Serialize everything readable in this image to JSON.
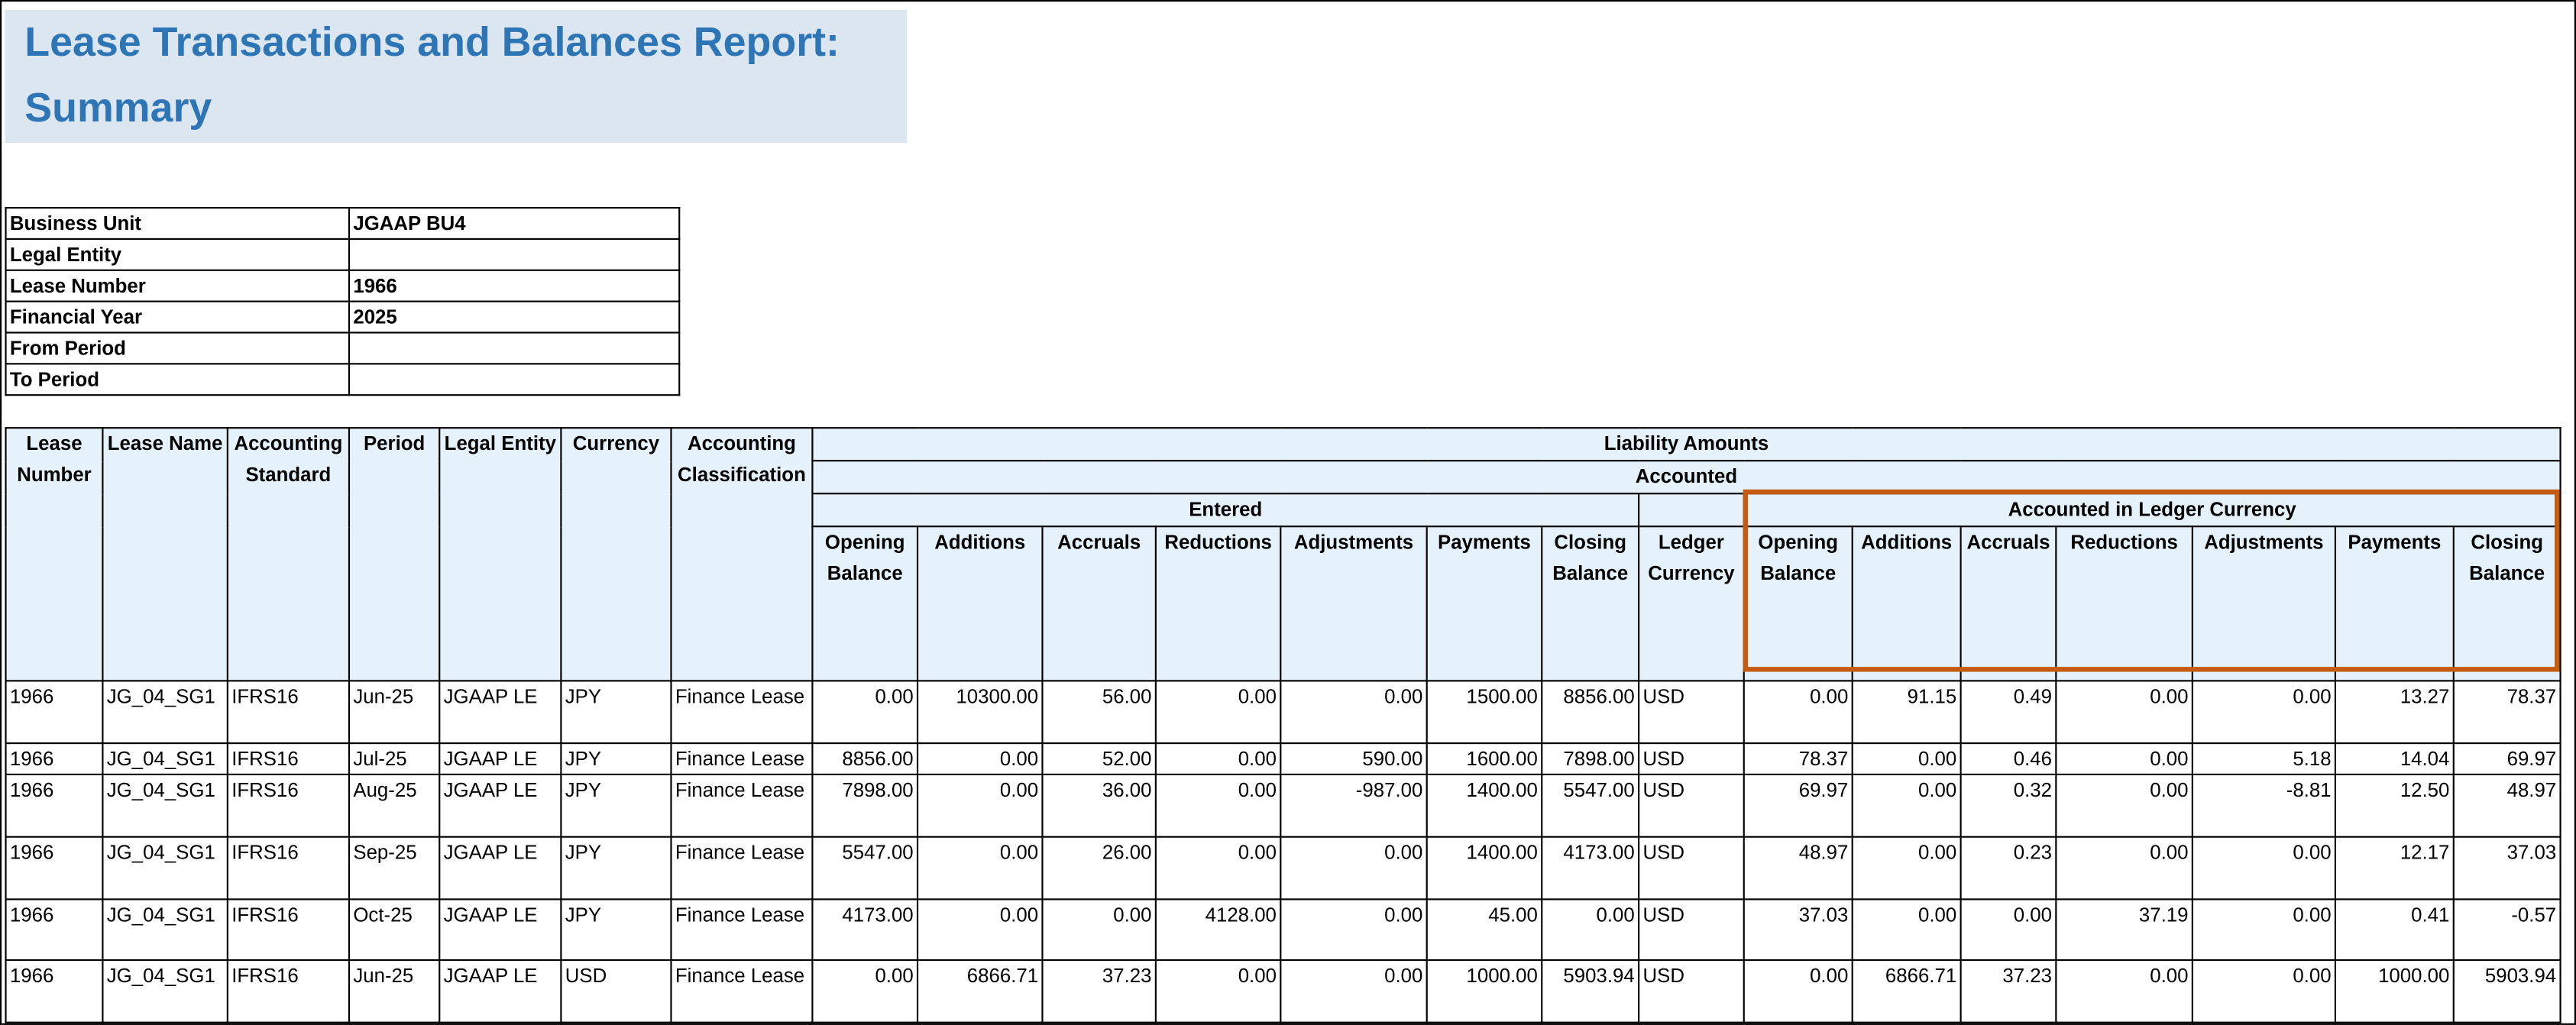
{
  "header": {
    "title": "Lease Transactions and Balances Report: Summary"
  },
  "parameters": [
    {
      "label": "Business Unit",
      "value": "JGAAP BU4"
    },
    {
      "label": "Legal Entity"
    },
    {
      "label": "Lease Number",
      "value": "1966"
    },
    {
      "label": "Financial Year",
      "value": "2025"
    },
    {
      "label": "From Period"
    },
    {
      "label": "To Period"
    }
  ],
  "table": {
    "group_header": "Liability Amounts",
    "subgroup_header": "Accounted",
    "entered_header": "Entered",
    "ledger_header": "Accounted in Ledger Currency",
    "columns": [
      "Lease Number",
      "Lease Name",
      "Accounting Standard",
      "Period",
      "Legal Entity",
      "Currency",
      "Accounting Classification",
      "Opening Balance",
      "Additions",
      "Accruals",
      "Reductions",
      "Adjustments",
      "Payments",
      "Closing Balance",
      "Ledger Currency",
      "Opening Balance",
      "Additions",
      "Accruals",
      "Reductions",
      "Adjustments",
      "Payments",
      "Closing Balance"
    ],
    "rows": [
      [
        "1966",
        "JG_04_SG1",
        "IFRS16",
        "Jun-25",
        "JGAAP LE",
        "JPY",
        "Finance Lease",
        "0.00",
        "10300.00",
        "56.00",
        "0.00",
        "0.00",
        "1500.00",
        "8856.00",
        "USD",
        "0.00",
        "91.15",
        "0.49",
        "0.00",
        "0.00",
        "13.27",
        "78.37"
      ],
      [
        "1966",
        "JG_04_SG1",
        "IFRS16",
        "Jul-25",
        "JGAAP LE",
        "JPY",
        "Finance Lease",
        "8856.00",
        "0.00",
        "52.00",
        "0.00",
        "590.00",
        "1600.00",
        "7898.00",
        "USD",
        "78.37",
        "0.00",
        "0.46",
        "0.00",
        "5.18",
        "14.04",
        "69.97"
      ],
      [
        "1966",
        "JG_04_SG1",
        "IFRS16",
        "Aug-25",
        "JGAAP LE",
        "JPY",
        "Finance Lease",
        "7898.00",
        "0.00",
        "36.00",
        "0.00",
        "-987.00",
        "1400.00",
        "5547.00",
        "USD",
        "69.97",
        "0.00",
        "0.32",
        "0.00",
        "-8.81",
        "12.50",
        "48.97"
      ],
      [
        "1966",
        "JG_04_SG1",
        "IFRS16",
        "Sep-25",
        "JGAAP LE",
        "JPY",
        "Finance Lease",
        "5547.00",
        "0.00",
        "26.00",
        "0.00",
        "0.00",
        "1400.00",
        "4173.00",
        "USD",
        "48.97",
        "0.00",
        "0.23",
        "0.00",
        "0.00",
        "12.17",
        "37.03"
      ],
      [
        "1966",
        "JG_04_SG1",
        "IFRS16",
        "Oct-25",
        "JGAAP LE",
        "JPY",
        "Finance Lease",
        "4173.00",
        "0.00",
        "0.00",
        "4128.00",
        "0.00",
        "45.00",
        "0.00",
        "USD",
        "37.03",
        "0.00",
        "0.00",
        "37.19",
        "0.00",
        "0.41",
        "-0.57"
      ],
      [
        "1966",
        "JG_04_SG1",
        "IFRS16",
        "Jun-25",
        "JGAAP LE",
        "USD",
        "Finance Lease",
        "0.00",
        "6866.71",
        "37.23",
        "0.00",
        "0.00",
        "1000.00",
        "5903.94",
        "USD",
        "0.00",
        "6866.71",
        "37.23",
        "0.00",
        "0.00",
        "1000.00",
        "5903.94"
      ]
    ]
  }
}
